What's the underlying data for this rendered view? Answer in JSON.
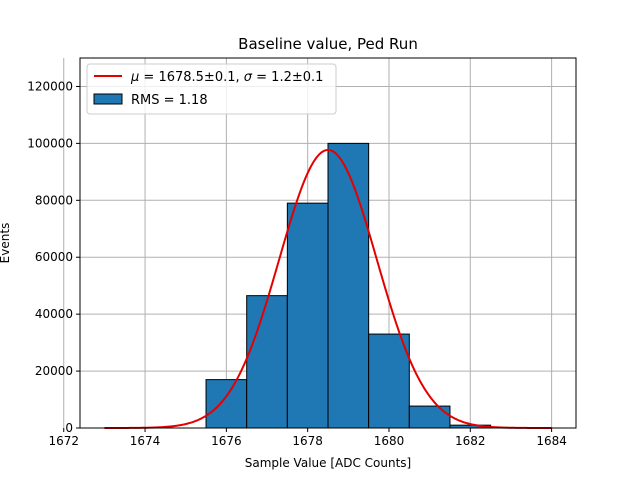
{
  "chart_data": {
    "type": "bar",
    "title": "Baseline value, Ped Run",
    "xlabel": "Sample Value [ADC Counts]",
    "ylabel": "Events",
    "xlim": [
      1672.4,
      1684.6
    ],
    "ylim": [
      0,
      130000
    ],
    "xticks": [
      1672,
      1674,
      1676,
      1678,
      1680,
      1682,
      1684
    ],
    "yticks": [
      0,
      20000,
      40000,
      60000,
      80000,
      100000,
      120000
    ],
    "grid": true,
    "legend_position": "top-left",
    "histogram": {
      "name": "RMS = 1.18",
      "bin_width": 1,
      "bins": [
        {
          "x": 1676,
          "count": 17000
        },
        {
          "x": 1677,
          "count": 46500
        },
        {
          "x": 1678,
          "count": 79000
        },
        {
          "x": 1679,
          "count": 100000
        },
        {
          "x": 1680,
          "count": 33000
        },
        {
          "x": 1681,
          "count": 7700
        },
        {
          "x": 1682,
          "count": 1000
        }
      ]
    },
    "fit": {
      "name": "$\\mu = $1678.5±0.1, $\\sigma = $1.2±0.1",
      "mu": 1678.5,
      "sigma": 1.2,
      "peak": 97700,
      "x_range": [
        1673,
        1684
      ]
    },
    "colors": {
      "bar_fill": "#1f77b4",
      "bar_edge": "#000000",
      "fit_line": "#e50000",
      "grid": "#b0b0b0"
    }
  }
}
